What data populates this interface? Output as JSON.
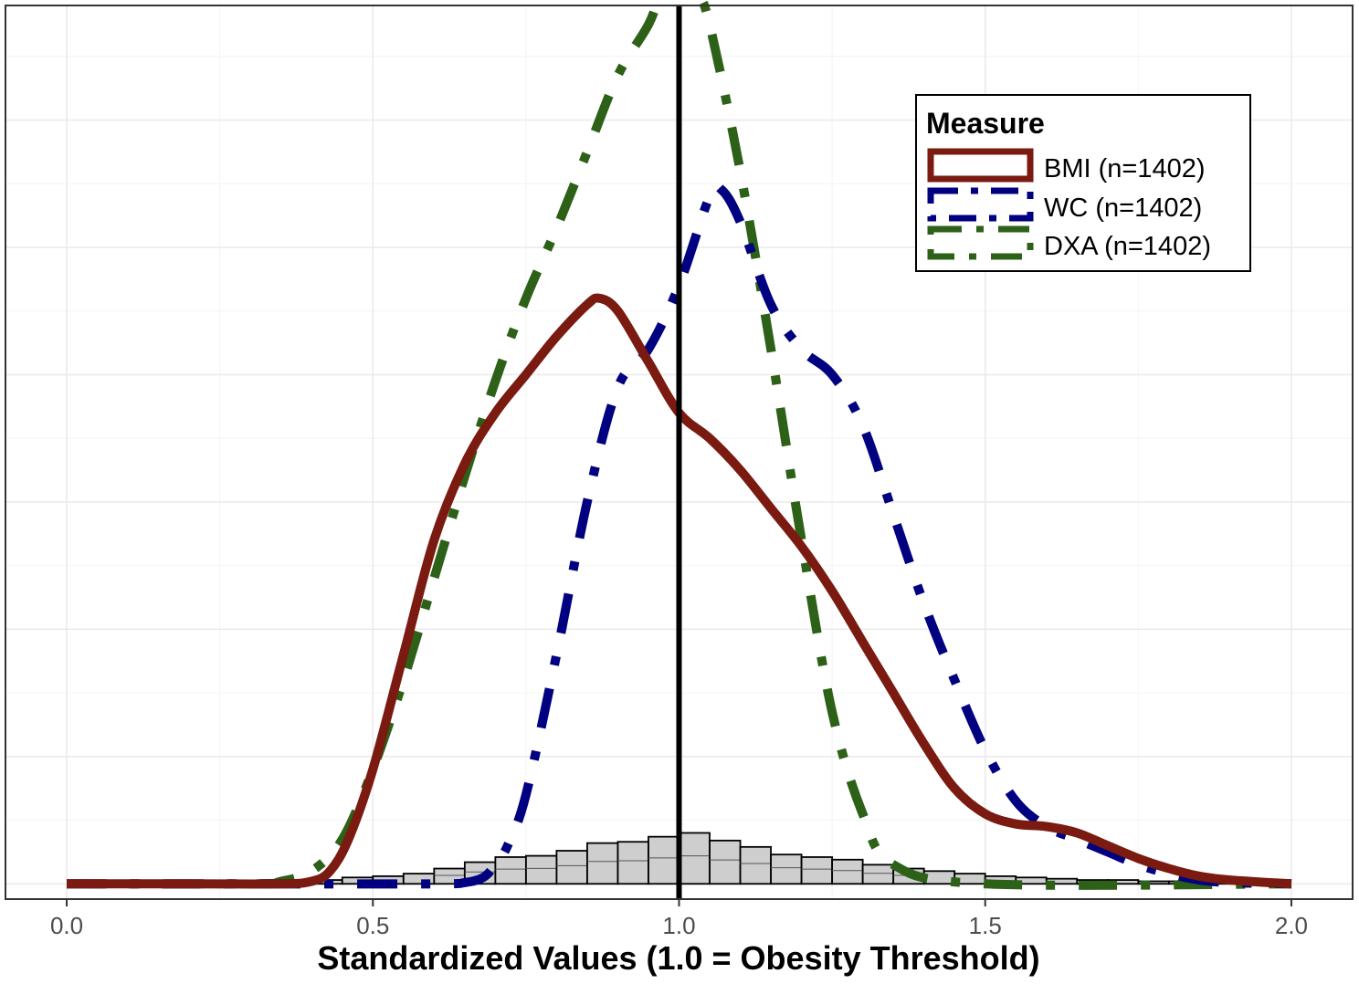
{
  "chart_data": {
    "type": "line",
    "title": "",
    "xlabel": "Standardized Values (1.0 = Obesity Threshold)",
    "ylabel": "",
    "xlim": [
      -0.1,
      2.1
    ],
    "ylim": [
      -0.12,
      6.9
    ],
    "x_ticks": [
      "0.0",
      "0.5",
      "1.0",
      "1.5",
      "2.0"
    ],
    "x_tick_values": [
      0,
      0.5,
      1,
      1.5,
      2
    ],
    "y_gridlines": [
      0,
      1,
      2,
      3,
      4,
      5,
      6,
      7
    ],
    "grid": true,
    "vline": {
      "x": 1.0,
      "color": "#000000"
    },
    "legend": {
      "title": "Measure",
      "placement": "top-right",
      "entries": [
        "BMI (n=1402)",
        "WC (n=1402)",
        "DXA (n=1402)"
      ]
    },
    "series": [
      {
        "name": "BMI (n=1402)",
        "color": "#7a1a10",
        "style": "solid",
        "x": [
          0,
          0.2,
          0.35,
          0.4,
          0.43,
          0.46,
          0.5,
          0.55,
          0.6,
          0.65,
          0.7,
          0.75,
          0.8,
          0.85,
          0.87,
          0.9,
          0.95,
          1.0,
          1.05,
          1.1,
          1.15,
          1.2,
          1.25,
          1.3,
          1.35,
          1.4,
          1.45,
          1.5,
          1.55,
          1.6,
          1.65,
          1.7,
          1.75,
          1.8,
          1.85,
          1.9,
          2.0
        ],
        "y": [
          0,
          0,
          0,
          0.02,
          0.1,
          0.35,
          0.9,
          1.8,
          2.7,
          3.3,
          3.7,
          4.0,
          4.3,
          4.55,
          4.6,
          4.5,
          4.1,
          3.7,
          3.5,
          3.25,
          2.95,
          2.65,
          2.3,
          1.9,
          1.5,
          1.1,
          0.75,
          0.55,
          0.47,
          0.45,
          0.4,
          0.3,
          0.2,
          0.12,
          0.06,
          0.03,
          0
        ]
      },
      {
        "name": "WC (n=1402)",
        "color": "#000080",
        "style": "dashdot",
        "x": [
          0,
          0.3,
          0.6,
          0.65,
          0.68,
          0.7,
          0.72,
          0.75,
          0.8,
          0.85,
          0.9,
          0.95,
          1.0,
          1.05,
          1.07,
          1.1,
          1.15,
          1.2,
          1.25,
          1.3,
          1.35,
          1.4,
          1.45,
          1.5,
          1.55,
          1.6,
          1.65,
          1.7,
          1.75,
          1.8,
          1.85,
          1.9,
          2.0
        ],
        "y": [
          0,
          0,
          0,
          0.01,
          0.05,
          0.15,
          0.3,
          0.7,
          1.8,
          3.0,
          3.9,
          4.2,
          4.7,
          5.4,
          5.45,
          5.2,
          4.55,
          4.2,
          4.0,
          3.6,
          2.9,
          2.2,
          1.6,
          1.05,
          0.65,
          0.45,
          0.35,
          0.25,
          0.15,
          0.08,
          0.03,
          0.01,
          0
        ]
      },
      {
        "name": "DXA (n=1402)",
        "color": "#2d6118",
        "style": "dashed",
        "x": [
          0,
          0.3,
          0.35,
          0.4,
          0.45,
          0.5,
          0.55,
          0.6,
          0.65,
          0.7,
          0.75,
          0.8,
          0.85,
          0.9,
          0.95,
          0.97,
          1.0,
          1.03,
          1.05,
          1.1,
          1.15,
          1.2,
          1.25,
          1.3,
          1.35,
          1.5,
          2.0
        ],
        "y": [
          0,
          0,
          0.02,
          0.1,
          0.35,
          0.9,
          1.6,
          2.4,
          3.2,
          3.95,
          4.6,
          5.15,
          5.75,
          6.35,
          6.75,
          7.0,
          7.3,
          7.0,
          6.75,
          5.6,
          4.2,
          2.7,
          1.35,
          0.55,
          0.15,
          0,
          0
        ]
      }
    ],
    "histogram": {
      "fill": "#bdbdbd",
      "edge": "#000000",
      "bin_width": 0.05,
      "bins": [
        {
          "x0": 0.35,
          "h": 0.02
        },
        {
          "x0": 0.4,
          "h": 0.03
        },
        {
          "x0": 0.45,
          "h": 0.05
        },
        {
          "x0": 0.5,
          "h": 0.06
        },
        {
          "x0": 0.55,
          "h": 0.08
        },
        {
          "x0": 0.6,
          "h": 0.12
        },
        {
          "x0": 0.65,
          "h": 0.17
        },
        {
          "x0": 0.7,
          "h": 0.21
        },
        {
          "x0": 0.75,
          "h": 0.22
        },
        {
          "x0": 0.8,
          "h": 0.26
        },
        {
          "x0": 0.85,
          "h": 0.32
        },
        {
          "x0": 0.9,
          "h": 0.33
        },
        {
          "x0": 0.95,
          "h": 0.37
        },
        {
          "x0": 1.0,
          "h": 0.4
        },
        {
          "x0": 1.05,
          "h": 0.34
        },
        {
          "x0": 1.1,
          "h": 0.29
        },
        {
          "x0": 1.15,
          "h": 0.23
        },
        {
          "x0": 1.2,
          "h": 0.21
        },
        {
          "x0": 1.25,
          "h": 0.19
        },
        {
          "x0": 1.3,
          "h": 0.15
        },
        {
          "x0": 1.35,
          "h": 0.12
        },
        {
          "x0": 1.4,
          "h": 0.1
        },
        {
          "x0": 1.45,
          "h": 0.08
        },
        {
          "x0": 1.5,
          "h": 0.06
        },
        {
          "x0": 1.55,
          "h": 0.05
        },
        {
          "x0": 1.6,
          "h": 0.04
        },
        {
          "x0": 1.65,
          "h": 0.03
        },
        {
          "x0": 1.7,
          "h": 0.03
        },
        {
          "x0": 1.75,
          "h": 0.02
        },
        {
          "x0": 1.8,
          "h": 0.02
        },
        {
          "x0": 1.85,
          "h": 0.01
        },
        {
          "x0": 1.9,
          "h": 0.01
        }
      ]
    }
  }
}
